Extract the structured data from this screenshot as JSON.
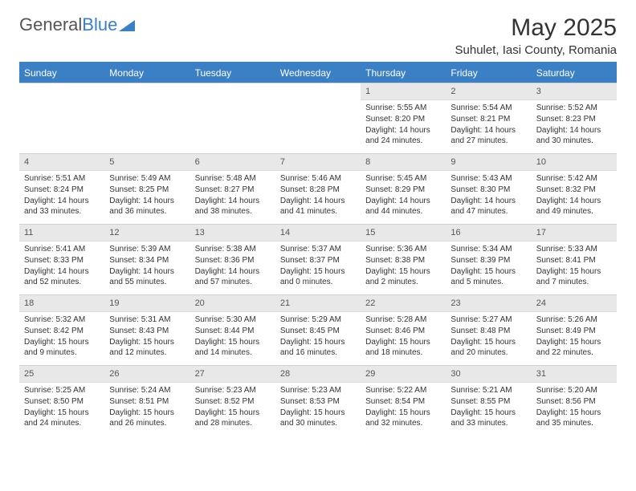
{
  "logo": {
    "text1": "General",
    "text2": "Blue"
  },
  "title": "May 2025",
  "location": "Suhulet, Iasi County, Romania",
  "colors": {
    "header_bg": "#3b7fc4",
    "header_text": "#ffffff",
    "daynum_bg": "#e8e8e8",
    "border": "#d0d0d0",
    "text": "#333333"
  },
  "weekdays": [
    "Sunday",
    "Monday",
    "Tuesday",
    "Wednesday",
    "Thursday",
    "Friday",
    "Saturday"
  ],
  "first_day_index": 4,
  "days": [
    {
      "n": "1",
      "sunrise": "5:55 AM",
      "sunset": "8:20 PM",
      "daylight": "14 hours and 24 minutes."
    },
    {
      "n": "2",
      "sunrise": "5:54 AM",
      "sunset": "8:21 PM",
      "daylight": "14 hours and 27 minutes."
    },
    {
      "n": "3",
      "sunrise": "5:52 AM",
      "sunset": "8:23 PM",
      "daylight": "14 hours and 30 minutes."
    },
    {
      "n": "4",
      "sunrise": "5:51 AM",
      "sunset": "8:24 PM",
      "daylight": "14 hours and 33 minutes."
    },
    {
      "n": "5",
      "sunrise": "5:49 AM",
      "sunset": "8:25 PM",
      "daylight": "14 hours and 36 minutes."
    },
    {
      "n": "6",
      "sunrise": "5:48 AM",
      "sunset": "8:27 PM",
      "daylight": "14 hours and 38 minutes."
    },
    {
      "n": "7",
      "sunrise": "5:46 AM",
      "sunset": "8:28 PM",
      "daylight": "14 hours and 41 minutes."
    },
    {
      "n": "8",
      "sunrise": "5:45 AM",
      "sunset": "8:29 PM",
      "daylight": "14 hours and 44 minutes."
    },
    {
      "n": "9",
      "sunrise": "5:43 AM",
      "sunset": "8:30 PM",
      "daylight": "14 hours and 47 minutes."
    },
    {
      "n": "10",
      "sunrise": "5:42 AM",
      "sunset": "8:32 PM",
      "daylight": "14 hours and 49 minutes."
    },
    {
      "n": "11",
      "sunrise": "5:41 AM",
      "sunset": "8:33 PM",
      "daylight": "14 hours and 52 minutes."
    },
    {
      "n": "12",
      "sunrise": "5:39 AM",
      "sunset": "8:34 PM",
      "daylight": "14 hours and 55 minutes."
    },
    {
      "n": "13",
      "sunrise": "5:38 AM",
      "sunset": "8:36 PM",
      "daylight": "14 hours and 57 minutes."
    },
    {
      "n": "14",
      "sunrise": "5:37 AM",
      "sunset": "8:37 PM",
      "daylight": "15 hours and 0 minutes."
    },
    {
      "n": "15",
      "sunrise": "5:36 AM",
      "sunset": "8:38 PM",
      "daylight": "15 hours and 2 minutes."
    },
    {
      "n": "16",
      "sunrise": "5:34 AM",
      "sunset": "8:39 PM",
      "daylight": "15 hours and 5 minutes."
    },
    {
      "n": "17",
      "sunrise": "5:33 AM",
      "sunset": "8:41 PM",
      "daylight": "15 hours and 7 minutes."
    },
    {
      "n": "18",
      "sunrise": "5:32 AM",
      "sunset": "8:42 PM",
      "daylight": "15 hours and 9 minutes."
    },
    {
      "n": "19",
      "sunrise": "5:31 AM",
      "sunset": "8:43 PM",
      "daylight": "15 hours and 12 minutes."
    },
    {
      "n": "20",
      "sunrise": "5:30 AM",
      "sunset": "8:44 PM",
      "daylight": "15 hours and 14 minutes."
    },
    {
      "n": "21",
      "sunrise": "5:29 AM",
      "sunset": "8:45 PM",
      "daylight": "15 hours and 16 minutes."
    },
    {
      "n": "22",
      "sunrise": "5:28 AM",
      "sunset": "8:46 PM",
      "daylight": "15 hours and 18 minutes."
    },
    {
      "n": "23",
      "sunrise": "5:27 AM",
      "sunset": "8:48 PM",
      "daylight": "15 hours and 20 minutes."
    },
    {
      "n": "24",
      "sunrise": "5:26 AM",
      "sunset": "8:49 PM",
      "daylight": "15 hours and 22 minutes."
    },
    {
      "n": "25",
      "sunrise": "5:25 AM",
      "sunset": "8:50 PM",
      "daylight": "15 hours and 24 minutes."
    },
    {
      "n": "26",
      "sunrise": "5:24 AM",
      "sunset": "8:51 PM",
      "daylight": "15 hours and 26 minutes."
    },
    {
      "n": "27",
      "sunrise": "5:23 AM",
      "sunset": "8:52 PM",
      "daylight": "15 hours and 28 minutes."
    },
    {
      "n": "28",
      "sunrise": "5:23 AM",
      "sunset": "8:53 PM",
      "daylight": "15 hours and 30 minutes."
    },
    {
      "n": "29",
      "sunrise": "5:22 AM",
      "sunset": "8:54 PM",
      "daylight": "15 hours and 32 minutes."
    },
    {
      "n": "30",
      "sunrise": "5:21 AM",
      "sunset": "8:55 PM",
      "daylight": "15 hours and 33 minutes."
    },
    {
      "n": "31",
      "sunrise": "5:20 AM",
      "sunset": "8:56 PM",
      "daylight": "15 hours and 35 minutes."
    }
  ],
  "labels": {
    "sunrise": "Sunrise: ",
    "sunset": "Sunset: ",
    "daylight": "Daylight: "
  }
}
